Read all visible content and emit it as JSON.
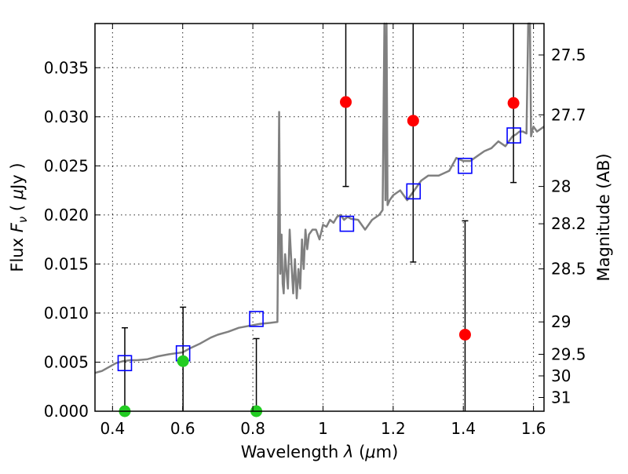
{
  "chart_data": {
    "type": "scatter",
    "xlabel": "Wavelength  λ (μm)",
    "ylabel": "Flux  Fν  ( μJy )",
    "ylabel_right": "Magnitude (AB)",
    "xlim": [
      0.35,
      1.63
    ],
    "ylim": [
      0.0,
      0.0395
    ],
    "grid": true,
    "x_ticks": [
      0.4,
      0.6,
      0.8,
      1.0,
      1.2,
      1.4,
      1.6
    ],
    "x_tick_labels": [
      "0.4",
      "0.6",
      "0.8",
      "1",
      "1.2",
      "1.4",
      "1.6"
    ],
    "y_ticks": [
      0.0,
      0.005,
      0.01,
      0.015,
      0.02,
      0.025,
      0.03,
      0.035
    ],
    "y_tick_labels": [
      "0.000",
      "0.005",
      "0.010",
      "0.015",
      "0.020",
      "0.025",
      "0.030",
      "0.035"
    ],
    "right_ticks": [
      {
        "label": "27.5",
        "flux": 0.0363
      },
      {
        "label": "27.7",
        "flux": 0.0302
      },
      {
        "label": "28",
        "flux": 0.0229
      },
      {
        "label": "28.2",
        "flux": 0.0191
      },
      {
        "label": "28.5",
        "flux": 0.0145
      },
      {
        "label": "29",
        "flux": 0.0091
      },
      {
        "label": "29.5",
        "flux": 0.0058
      },
      {
        "label": "30",
        "flux": 0.0036
      },
      {
        "label": "31",
        "flux": 0.0014
      }
    ],
    "model_sed": {
      "color": "#808080",
      "x": [
        0.35,
        0.37,
        0.39,
        0.41,
        0.43,
        0.45,
        0.47,
        0.5,
        0.53,
        0.56,
        0.58,
        0.6,
        0.62,
        0.65,
        0.68,
        0.7,
        0.73,
        0.76,
        0.79,
        0.82,
        0.85,
        0.87,
        0.875,
        0.878,
        0.882,
        0.885,
        0.888,
        0.892,
        0.9,
        0.905,
        0.91,
        0.915,
        0.92,
        0.925,
        0.93,
        0.935,
        0.94,
        0.945,
        0.95,
        0.955,
        0.96,
        0.97,
        0.98,
        0.99,
        1.0,
        1.01,
        1.02,
        1.03,
        1.04,
        1.05,
        1.06,
        1.07,
        1.08,
        1.1,
        1.12,
        1.14,
        1.16,
        1.17,
        1.175,
        1.178,
        1.181,
        1.184,
        1.19,
        1.2,
        1.22,
        1.24,
        1.26,
        1.28,
        1.3,
        1.33,
        1.36,
        1.38,
        1.4,
        1.42,
        1.44,
        1.46,
        1.48,
        1.5,
        1.52,
        1.54,
        1.55,
        1.56,
        1.57,
        1.58,
        1.585,
        1.59,
        1.593,
        1.596,
        1.6,
        1.61,
        1.63
      ],
      "y": [
        0.0039,
        0.0041,
        0.0045,
        0.0049,
        0.0051,
        0.0052,
        0.0052,
        0.0053,
        0.0056,
        0.0058,
        0.0059,
        0.006,
        0.0064,
        0.0069,
        0.0075,
        0.0078,
        0.0081,
        0.0085,
        0.0087,
        0.0089,
        0.009,
        0.0091,
        0.0305,
        0.014,
        0.018,
        0.013,
        0.012,
        0.016,
        0.0125,
        0.0185,
        0.015,
        0.012,
        0.0155,
        0.0115,
        0.0145,
        0.0125,
        0.0175,
        0.0145,
        0.0185,
        0.0165,
        0.018,
        0.0185,
        0.0185,
        0.0175,
        0.019,
        0.0188,
        0.0195,
        0.0192,
        0.0198,
        0.02,
        0.0195,
        0.0198,
        0.0196,
        0.0195,
        0.0185,
        0.0195,
        0.02,
        0.0205,
        0.0395,
        0.0215,
        0.0395,
        0.021,
        0.0215,
        0.022,
        0.0225,
        0.0215,
        0.0225,
        0.0235,
        0.024,
        0.024,
        0.0245,
        0.0258,
        0.0255,
        0.0255,
        0.026,
        0.0265,
        0.0268,
        0.0275,
        0.027,
        0.028,
        0.0282,
        0.0285,
        0.0285,
        0.0283,
        0.0395,
        0.0395,
        0.028,
        0.0285,
        0.029,
        0.0285,
        0.029
      ]
    },
    "series": [
      {
        "name": "",
        "marker": "square",
        "color": "#0000ff",
        "x": [
          0.435,
          0.601,
          0.81,
          1.068,
          1.258,
          1.405,
          1.544
        ],
        "y": [
          0.0049,
          0.0059,
          0.0094,
          0.0191,
          0.0224,
          0.025,
          0.0281
        ]
      },
      {
        "name": "",
        "marker": "circle",
        "color": "#ff0000",
        "x": [
          1.065,
          1.257,
          1.405,
          1.543
        ],
        "y": [
          0.0315,
          0.0296,
          0.0078,
          0.0314
        ],
        "yerr_low": [
          0.0229,
          0.0152,
          0.0,
          0.0233
        ],
        "yerr_high": [
          0.0395,
          0.0395,
          0.0194,
          0.0395
        ]
      },
      {
        "name": "",
        "marker": "circle",
        "color": "#22cc22",
        "x": [
          0.435,
          0.601,
          0.81
        ],
        "y": [
          0.0,
          0.0051,
          0.0
        ],
        "yerr_low": [
          0.0,
          0.0,
          0.0
        ],
        "yerr_high": [
          0.0085,
          0.0106,
          0.0074
        ]
      }
    ]
  }
}
